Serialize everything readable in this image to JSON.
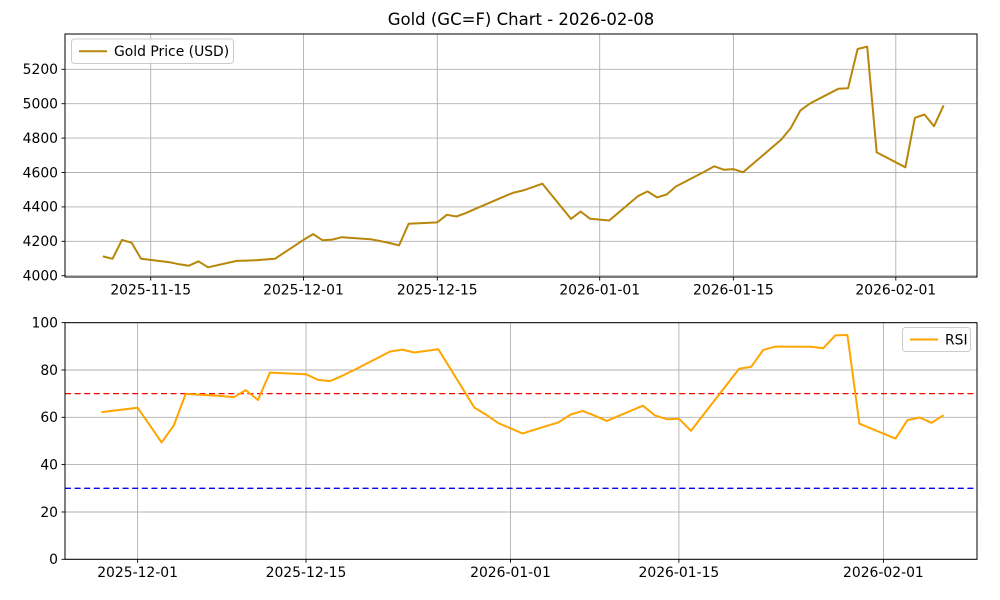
{
  "figure": {
    "title": "Gold (GC=F) Chart - 2026-02-08",
    "background": "#ffffff"
  },
  "chart_data": [
    {
      "type": "line",
      "name": "gold-price",
      "legend": {
        "label": "Gold Price (USD)",
        "position": "upper-left"
      },
      "line_color": "#B8860B",
      "line_width": 2,
      "grid": true,
      "grid_color": "#b0b0b0",
      "x_ticks": [
        "2025-11-15",
        "2025-12-01",
        "2025-12-15",
        "2026-01-01",
        "2026-01-15",
        "2026-02-01"
      ],
      "y_ticks": [
        4000,
        4200,
        4400,
        4600,
        4800,
        5000,
        5200
      ],
      "ylim": [
        3992,
        5406
      ],
      "x": [
        "2025-11-10",
        "2025-11-11",
        "2025-11-12",
        "2025-11-13",
        "2025-11-14",
        "2025-11-17",
        "2025-11-18",
        "2025-11-19",
        "2025-11-20",
        "2025-11-21",
        "2025-11-24",
        "2025-11-25",
        "2025-11-26",
        "2025-11-28",
        "2025-12-01",
        "2025-12-02",
        "2025-12-03",
        "2025-12-04",
        "2025-12-05",
        "2025-12-08",
        "2025-12-09",
        "2025-12-10",
        "2025-12-11",
        "2025-12-12",
        "2025-12-15",
        "2025-12-16",
        "2025-12-17",
        "2025-12-18",
        "2025-12-19",
        "2025-12-22",
        "2025-12-23",
        "2025-12-24",
        "2025-12-26",
        "2025-12-29",
        "2025-12-30",
        "2025-12-31",
        "2026-01-02",
        "2026-01-05",
        "2026-01-06",
        "2026-01-07",
        "2026-01-08",
        "2026-01-09",
        "2026-01-12",
        "2026-01-13",
        "2026-01-14",
        "2026-01-15",
        "2026-01-16",
        "2026-01-20",
        "2026-01-21",
        "2026-01-22",
        "2026-01-23",
        "2026-01-26",
        "2026-01-27",
        "2026-01-28",
        "2026-01-29",
        "2026-01-30",
        "2026-02-02",
        "2026-02-03",
        "2026-02-04",
        "2026-02-05",
        "2026-02-06"
      ],
      "y": [
        4112,
        4098,
        4208,
        4192,
        4098,
        4078,
        4066,
        4058,
        4084,
        4049,
        4086,
        4088,
        4090,
        4098,
        4208,
        4242,
        4206,
        4210,
        4224,
        4212,
        4202,
        4190,
        4176,
        4302,
        4310,
        4354,
        4344,
        4364,
        4389,
        4461,
        4483,
        4496,
        4535,
        4330,
        4373,
        4331,
        4321,
        4462,
        4490,
        4455,
        4472,
        4519,
        4606,
        4636,
        4616,
        4620,
        4601,
        4791,
        4859,
        4960,
        5001,
        5087,
        5090,
        5318,
        5332,
        4717,
        4630,
        4918,
        4937,
        4869,
        4990
      ]
    },
    {
      "type": "line",
      "name": "rsi",
      "legend": {
        "label": "RSI",
        "position": "upper-right"
      },
      "line_color": "#FFA500",
      "line_width": 2,
      "grid": true,
      "grid_color": "#b0b0b0",
      "x_ticks": [
        "2025-12-01",
        "2025-12-15",
        "2026-01-01",
        "2026-01-15",
        "2026-02-01"
      ],
      "y_ticks": [
        0,
        20,
        40,
        60,
        80,
        100
      ],
      "ylim": [
        0,
        100
      ],
      "thresholds": [
        {
          "name": "overbought-line",
          "value": 70,
          "color": "#ff0000",
          "style": "dashed"
        },
        {
          "name": "oversold-line",
          "value": 30,
          "color": "#0000ff",
          "style": "dashed"
        }
      ],
      "x": [
        "2025-11-28",
        "2025-12-01",
        "2025-12-02",
        "2025-12-03",
        "2025-12-04",
        "2025-12-05",
        "2025-12-08",
        "2025-12-09",
        "2025-12-10",
        "2025-12-11",
        "2025-12-12",
        "2025-12-15",
        "2025-12-16",
        "2025-12-17",
        "2025-12-18",
        "2025-12-19",
        "2025-12-22",
        "2025-12-23",
        "2025-12-24",
        "2025-12-26",
        "2025-12-29",
        "2025-12-30",
        "2025-12-31",
        "2026-01-02",
        "2026-01-05",
        "2026-01-06",
        "2026-01-07",
        "2026-01-08",
        "2026-01-09",
        "2026-01-12",
        "2026-01-13",
        "2026-01-14",
        "2026-01-15",
        "2026-01-16",
        "2026-01-20",
        "2026-01-21",
        "2026-01-22",
        "2026-01-23",
        "2026-01-26",
        "2026-01-27",
        "2026-01-28",
        "2026-01-29",
        "2026-01-30",
        "2026-02-02",
        "2026-02-03",
        "2026-02-04",
        "2026-02-05",
        "2026-02-06"
      ],
      "y": [
        62.2,
        64.0,
        56.8,
        49.4,
        56.5,
        69.9,
        69.0,
        68.5,
        71.5,
        67.3,
        78.9,
        78.2,
        75.8,
        75.3,
        77.5,
        80.0,
        87.8,
        88.6,
        87.4,
        88.8,
        64.1,
        61.0,
        57.5,
        53.2,
        57.9,
        61.2,
        62.7,
        60.7,
        58.5,
        64.9,
        60.8,
        59.2,
        59.4,
        54.3,
        80.5,
        81.3,
        88.4,
        89.9,
        89.8,
        89.2,
        94.6,
        94.8,
        57.3,
        51.0,
        58.8,
        59.9,
        57.7,
        60.9
      ]
    }
  ]
}
